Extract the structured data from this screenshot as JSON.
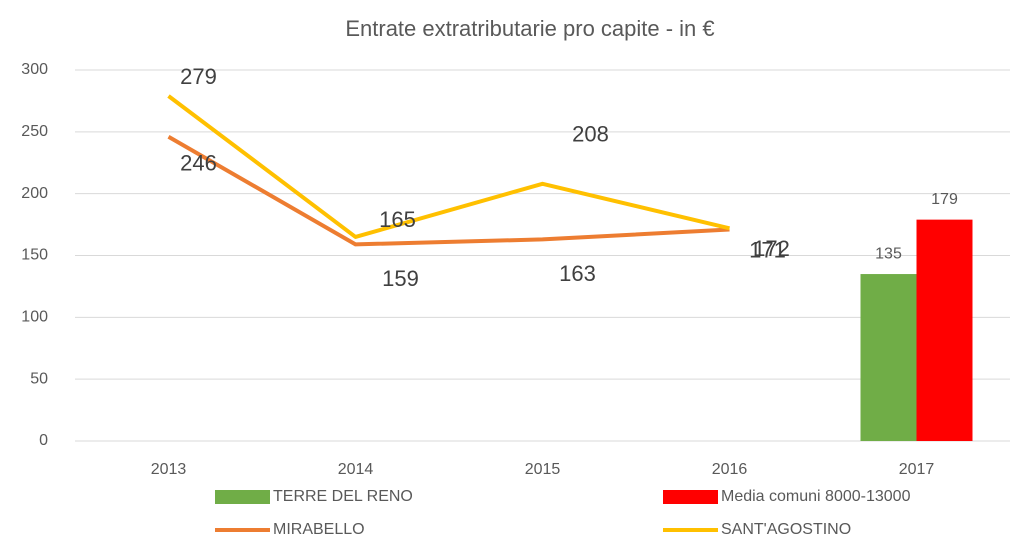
{
  "chart_data": {
    "type": "combo",
    "title": "Entrate extratributarie  pro capite - in €",
    "categories": [
      "2013",
      "2014",
      "2015",
      "2016",
      "2017"
    ],
    "series": [
      {
        "name": "TERRE DEL RENO",
        "type": "bar",
        "color": "#70ad47",
        "values": [
          null,
          null,
          null,
          null,
          135
        ]
      },
      {
        "name": "Media comuni 8000-13000",
        "type": "bar",
        "color": "#ff0000",
        "values": [
          null,
          null,
          null,
          null,
          179
        ]
      },
      {
        "name": "MIRABELLO",
        "type": "line",
        "color": "#ed7d31",
        "values": [
          246,
          159,
          163,
          171,
          null
        ]
      },
      {
        "name": "SANT'AGOSTINO",
        "type": "line",
        "color": "#ffc000",
        "values": [
          279,
          165,
          208,
          172,
          null
        ]
      }
    ],
    "ylim": [
      0,
      300
    ],
    "yticks": [
      0,
      50,
      100,
      150,
      200,
      250,
      300
    ],
    "grid": true
  }
}
